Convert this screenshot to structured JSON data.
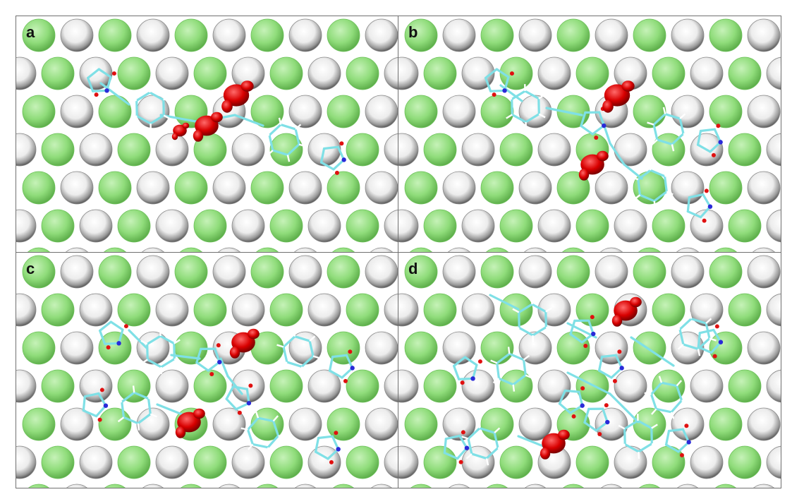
{
  "panels": [
    {
      "label": "a"
    },
    {
      "label": "b"
    },
    {
      "label": "c"
    },
    {
      "label": "d"
    }
  ],
  "colors": {
    "green_atom": "#8fdc7a",
    "white_atom": "#f2f2f2",
    "carbon": "#7fe0e6",
    "nitrogen": "#2a2ad8",
    "oxygen": "#e01010",
    "hydrogen": "#ffffff",
    "spin_density": "#d80000"
  }
}
